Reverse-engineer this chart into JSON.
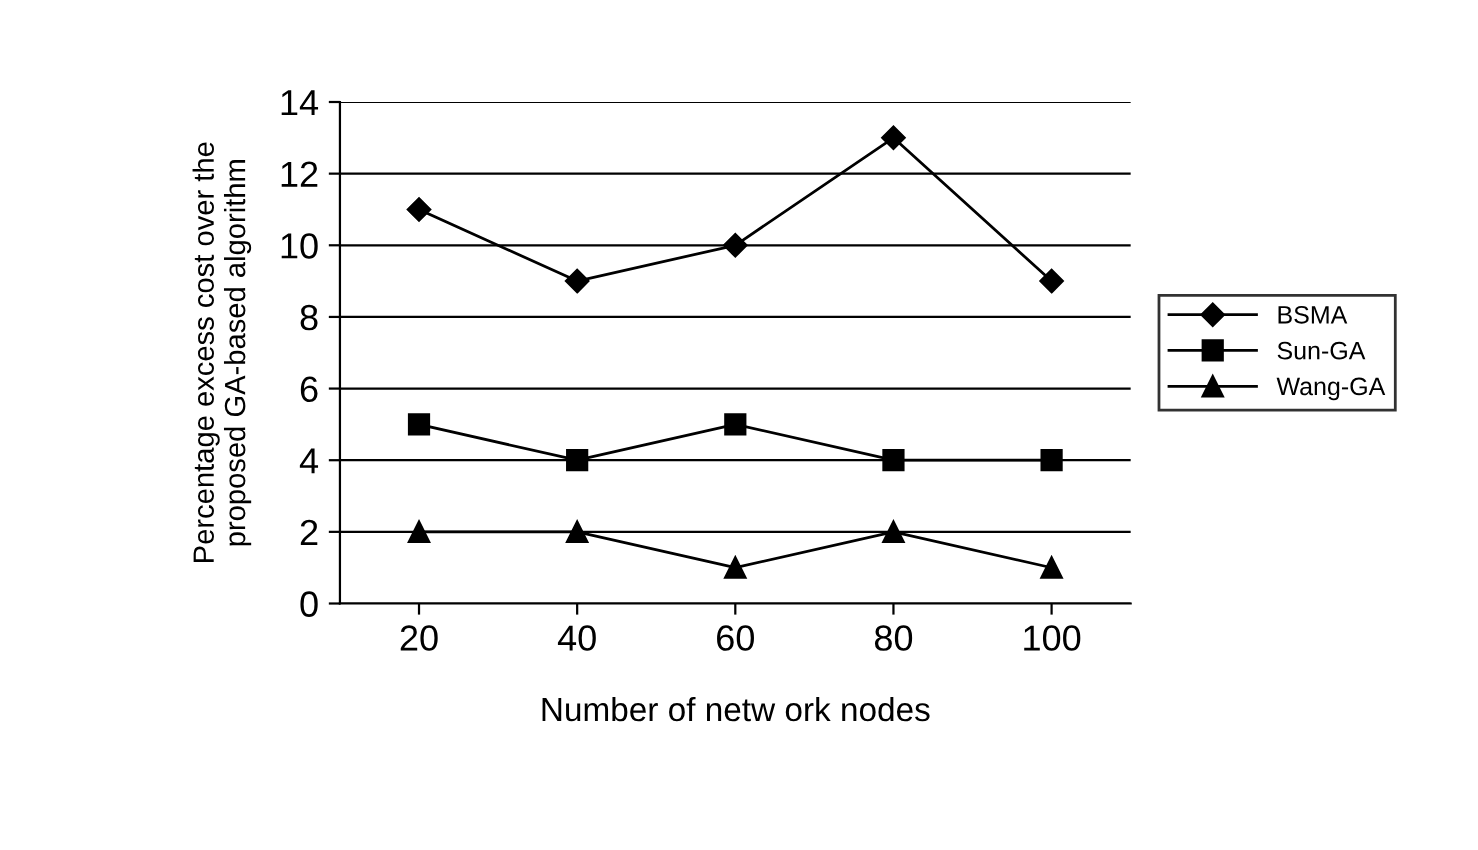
{
  "chart_data": {
    "type": "line",
    "xlabel": "Number of netw ork nodes",
    "ylabel": "Percentage excess cost over the\nproposed GA-based algorithm",
    "categories": [
      "20",
      "40",
      "60",
      "80",
      "100"
    ],
    "series": [
      {
        "name": "BSMA",
        "color": "#000000",
        "marker": "diamond",
        "values": [
          11,
          9,
          10,
          13,
          9
        ]
      },
      {
        "name": "Sun-GA",
        "color": "#000000",
        "marker": "square",
        "values": [
          5,
          4,
          5,
          4,
          4
        ]
      },
      {
        "name": "Wang-GA",
        "color": "#000000",
        "marker": "triangle",
        "values": [
          2,
          2,
          1,
          2,
          1
        ]
      }
    ],
    "ylim": [
      0,
      14
    ],
    "yticks": [
      0,
      2,
      4,
      6,
      8,
      10,
      12,
      14
    ],
    "grid": "y",
    "legend": "right",
    "line_style": "solid"
  }
}
